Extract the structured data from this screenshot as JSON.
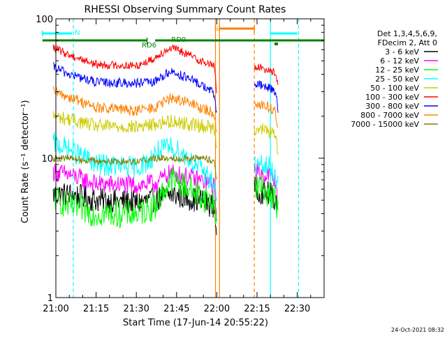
{
  "chart_data": {
    "type": "line",
    "title": "RHESSI Observing Summary Count Rates",
    "xlabel": "Start Time (17-Jun-14 20:55:22)",
    "ylabel": "Count Rate (s⁻¹ detector⁻¹)",
    "x_unit": "minutes",
    "x_start_time": "20:55:22",
    "xlim": [
      0,
      100
    ],
    "ylim": [
      1,
      100
    ],
    "yscale": "log",
    "grid": false,
    "legend_position": "top-right",
    "x_ticks": [
      {
        "minute": 0,
        "label": "21:00"
      },
      {
        "minute": 15,
        "label": "21:15"
      },
      {
        "minute": 30,
        "label": "21:30"
      },
      {
        "minute": 45,
        "label": "21:45"
      },
      {
        "minute": 60,
        "label": "22:00"
      },
      {
        "minute": 75,
        "label": "22:15"
      },
      {
        "minute": 90,
        "label": "22:30"
      }
    ],
    "y_ticks": [
      {
        "value": 1,
        "label": "1"
      },
      {
        "value": 10,
        "label": "10"
      },
      {
        "value": 100,
        "label": "100"
      }
    ],
    "legend_header": [
      "Det 1,3,4,5,6,9,",
      "FDecim 2, Att 0"
    ],
    "series": [
      {
        "name": "3 - 6 keV",
        "color": "#000000",
        "points": [
          [
            -1,
            5.5
          ],
          [
            5,
            5.5
          ],
          [
            15,
            5.0
          ],
          [
            30,
            4.8
          ],
          [
            37,
            5.0
          ],
          [
            43,
            5.5
          ],
          [
            47,
            5.3
          ],
          [
            55,
            4.9
          ],
          [
            59,
            4.5
          ],
          [
            60,
            3.0
          ]
        ],
        "points2": [
          [
            74,
            6.0
          ],
          [
            80,
            5.5
          ],
          [
            82,
            5.0
          ],
          [
            83,
            4.5
          ]
        ]
      },
      {
        "name": "6 - 12 keV",
        "color": "#ff00ff",
        "points": [
          [
            -1,
            8.0
          ],
          [
            5,
            7.6
          ],
          [
            15,
            6.5
          ],
          [
            30,
            6.4
          ],
          [
            37,
            6.6
          ],
          [
            43,
            7.8
          ],
          [
            47,
            7.5
          ],
          [
            55,
            6.8
          ],
          [
            59,
            6.2
          ],
          [
            60,
            4.0
          ]
        ],
        "points2": [
          [
            74,
            8.0
          ],
          [
            80,
            7.5
          ],
          [
            82,
            6.5
          ],
          [
            83,
            5.0
          ]
        ]
      },
      {
        "name": "12 - 25 keV",
        "color": "#00ff00",
        "points": [
          [
            -1,
            5.2
          ],
          [
            5,
            4.5
          ],
          [
            15,
            4.0
          ],
          [
            30,
            4.0
          ],
          [
            37,
            4.5
          ],
          [
            43,
            7.0
          ],
          [
            47,
            6.5
          ],
          [
            55,
            5.2
          ],
          [
            59,
            4.8
          ],
          [
            60,
            3.5
          ]
        ],
        "points2": [
          [
            74,
            6.5
          ],
          [
            80,
            5.5
          ],
          [
            82,
            5.0
          ],
          [
            83,
            4.0
          ]
        ]
      },
      {
        "name": "25 - 50 keV",
        "color": "#00ffff",
        "points": [
          [
            -1,
            13.0
          ],
          [
            5,
            11.5
          ],
          [
            15,
            9.0
          ],
          [
            30,
            8.6
          ],
          [
            35,
            9.5
          ],
          [
            37,
            11.0
          ],
          [
            43,
            12.0
          ],
          [
            45,
            11.5
          ],
          [
            55,
            8.0
          ],
          [
            59,
            6.5
          ],
          [
            60,
            5.0
          ]
        ],
        "points2": [
          [
            74,
            9.0
          ],
          [
            80,
            8.5
          ],
          [
            82,
            7.5
          ],
          [
            83,
            6.0
          ]
        ]
      },
      {
        "name": "50 - 100 keV",
        "color": "#cccc00",
        "points": [
          [
            -1,
            20.0
          ],
          [
            5,
            19.0
          ],
          [
            15,
            17.0
          ],
          [
            30,
            16.8
          ],
          [
            37,
            17.5
          ],
          [
            43,
            18.5
          ],
          [
            47,
            18.0
          ],
          [
            55,
            17.0
          ],
          [
            59,
            16.5
          ],
          [
            60,
            12.0
          ]
        ],
        "points2": [
          [
            74,
            16.5
          ],
          [
            80,
            15.5
          ],
          [
            82,
            14.0
          ],
          [
            83,
            10.0
          ]
        ]
      },
      {
        "name": "100 - 300 keV",
        "color": "#ff0000",
        "points": [
          [
            -1,
            62.0
          ],
          [
            5,
            55.0
          ],
          [
            15,
            47.0
          ],
          [
            30,
            46.0
          ],
          [
            37,
            52.0
          ],
          [
            38,
            55.0
          ],
          [
            43,
            62.0
          ],
          [
            47,
            58.0
          ],
          [
            55,
            49.0
          ],
          [
            59,
            46.0
          ],
          [
            60,
            30.0
          ]
        ],
        "points2": [
          [
            74,
            45.0
          ],
          [
            80,
            43.0
          ],
          [
            82,
            40.0
          ],
          [
            83,
            30.0
          ]
        ]
      },
      {
        "name": "300 - 800 keV",
        "color": "#0000ff",
        "points": [
          [
            -1,
            45.0
          ],
          [
            5,
            40.0
          ],
          [
            15,
            35.0
          ],
          [
            30,
            34.5
          ],
          [
            37,
            35.0
          ],
          [
            38,
            37.0
          ],
          [
            43,
            42.0
          ],
          [
            47,
            39.0
          ],
          [
            55,
            33.0
          ],
          [
            59,
            29.0
          ],
          [
            60,
            20.0
          ]
        ],
        "points2": [
          [
            74,
            34.0
          ],
          [
            80,
            32.0
          ],
          [
            82,
            30.0
          ],
          [
            83,
            20.0
          ]
        ]
      },
      {
        "name": "800 - 7000 keV",
        "color": "#ff8000",
        "points": [
          [
            -1,
            30.0
          ],
          [
            5,
            27.5
          ],
          [
            15,
            23.0
          ],
          [
            30,
            22.0
          ],
          [
            37,
            23.0
          ],
          [
            43,
            27.0
          ],
          [
            47,
            26.0
          ],
          [
            55,
            22.5
          ],
          [
            59,
            21.0
          ],
          [
            60,
            15.0
          ]
        ],
        "points2": [
          [
            74,
            25.0
          ],
          [
            80,
            23.0
          ],
          [
            82,
            21.0
          ],
          [
            83,
            15.0
          ]
        ]
      },
      {
        "name": "7000 - 15000 keV",
        "color": "#7f7f00",
        "points": [
          [
            -1,
            10.0
          ],
          [
            5,
            10.0
          ],
          [
            15,
            9.5
          ],
          [
            30,
            9.5
          ],
          [
            37,
            10.0
          ],
          [
            43,
            10.0
          ],
          [
            55,
            10.0
          ],
          [
            59,
            9.5
          ],
          [
            60,
            7.0
          ]
        ],
        "points2": []
      }
    ],
    "annotations": [
      {
        "text": "N",
        "color": "#00ffff",
        "minute": 6
      },
      {
        "text": "RD6",
        "color": "#008000",
        "minute": 31
      },
      {
        "text": "RD0",
        "color": "#008000",
        "minute": 42
      },
      {
        "text": "S",
        "color": "#ff8000",
        "minute": 58
      }
    ],
    "state_bars": [
      {
        "name": "night",
        "color": "#00ffff",
        "from": -5,
        "to": 6
      },
      {
        "name": "night",
        "color": "#00ffff",
        "from": 80,
        "to": 90
      },
      {
        "name": "saa",
        "color": "#ff8000",
        "from": 61,
        "to": 74
      },
      {
        "name": "decimation",
        "color": "#008000",
        "from": -5,
        "to": 34
      },
      {
        "name": "decimation",
        "color": "#008000",
        "from": 37,
        "to": 100
      }
    ],
    "vertical_markers": [
      {
        "color": "#00ffff",
        "minute": 6.5,
        "dashed": true
      },
      {
        "color": "#ff8000",
        "minute": 59.5,
        "dashed": false
      },
      {
        "color": "#ff8000",
        "minute": 61.0,
        "dashed": false
      },
      {
        "color": "#ff8000",
        "minute": 74.0,
        "dashed": true
      },
      {
        "color": "#00ffff",
        "minute": 80.0,
        "dashed": false
      },
      {
        "color": "#00ffff",
        "minute": 90.5,
        "dashed": true
      }
    ],
    "footer_date": "24-Oct-2021 08:32"
  }
}
